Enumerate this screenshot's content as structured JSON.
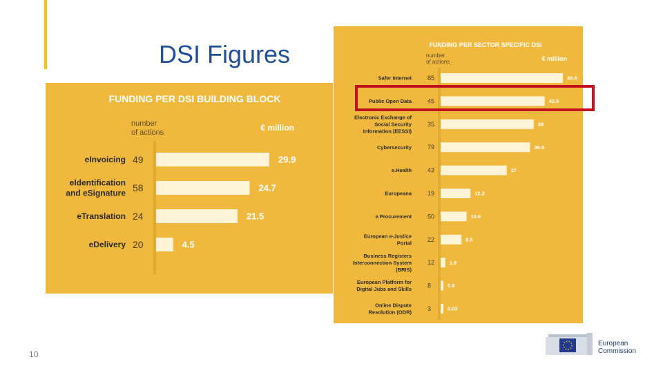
{
  "slide": {
    "title": "DSI Figures",
    "page_number": "10"
  },
  "logo": {
    "line1": "European",
    "line2": "Commission"
  },
  "chart_data": [
    {
      "type": "bar",
      "title": "FUNDING PER DSI BUILDING BLOCK",
      "count_header": "number of actions",
      "value_header": "€ million",
      "categories": [
        "eInvoicing",
        "eIdentification and eSignature",
        "eTranslation",
        "eDelivery"
      ],
      "actions": [
        49,
        58,
        24,
        20
      ],
      "values": [
        29.9,
        24.7,
        21.5,
        4.5
      ],
      "xlim": [
        0,
        29.9
      ]
    },
    {
      "type": "bar",
      "title": "FUNDING PER SECTOR SPECIFIC DSI",
      "count_header": "number of actions",
      "value_header": "€ million",
      "categories": [
        "Safer Internet",
        "Public Open Data",
        "Electronic Exchange of Social Security Information (EESSI)",
        "Cybersecurity",
        "e.Health",
        "Europeana",
        "e.Procurement",
        "European e-Justice Portal",
        "Business Registers Interconnection System (BRIS)",
        "European Platform for Digital Jubs and Skills",
        "Online Dispute Resolution (ODR)"
      ],
      "actions": [
        "85",
        "45",
        "35",
        "79",
        "43",
        "19",
        "50",
        "22",
        "12",
        "8",
        "3"
      ],
      "values": [
        49.9,
        42.5,
        38,
        36.5,
        27,
        12.2,
        10.6,
        8.5,
        1.9,
        0.9,
        0.03
      ],
      "highlighted": "Public Open Data",
      "xlim": [
        0,
        49.9
      ]
    }
  ],
  "colors": {
    "panel": "#f0b93e",
    "bar": "#fdf3d6",
    "title_text": "#ffffff",
    "highlight": "#c0141d",
    "slide_title": "#1f4e9a"
  }
}
